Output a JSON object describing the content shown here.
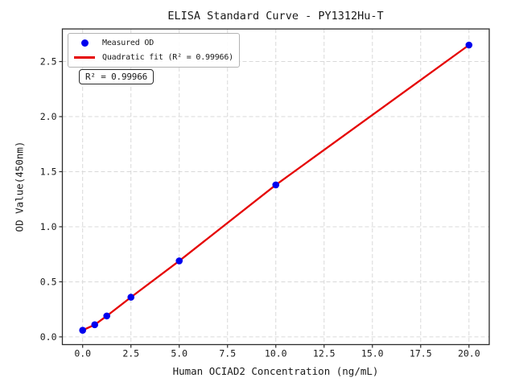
{
  "chart_data": {
    "type": "scatter",
    "title": "ELISA Standard Curve - PY1312Hu-T",
    "xlabel": "Human OCIAD2 Concentration (ng/mL)",
    "ylabel": "OD Value(450nm)",
    "x": [
      0,
      0.625,
      1.25,
      2.5,
      5,
      10,
      20
    ],
    "y": [
      0.06,
      0.11,
      0.19,
      0.36,
      0.69,
      1.38,
      2.65
    ],
    "fit": {
      "type": "quadratic",
      "r_squared": "0.99966"
    },
    "annotation": "R² = 0.99966",
    "x_tick_labels": [
      "0.0",
      "2.5",
      "5.0",
      "7.5",
      "10.0",
      "12.5",
      "15.0",
      "17.5",
      "20.0"
    ],
    "y_tick_labels": [
      "0.0",
      "0.5",
      "1.0",
      "1.5",
      "2.0",
      "2.5"
    ],
    "xlim": [
      -1.05,
      21.05
    ],
    "ylim": [
      -0.07,
      2.796
    ],
    "grid": true,
    "legend": {
      "position": "upper-left",
      "entries": [
        {
          "label": "Measured OD",
          "marker": "dot",
          "color": "#0000ee"
        },
        {
          "label": "Quadratic fit (R² = 0.99966)",
          "marker": "line",
          "color": "#e50000"
        }
      ]
    },
    "colors": {
      "scatter": "#0000ee",
      "fit_line": "#e50000",
      "grid": "#d9d9d9",
      "spine": "#2b2b2b",
      "text": "#1a1a1a"
    }
  }
}
